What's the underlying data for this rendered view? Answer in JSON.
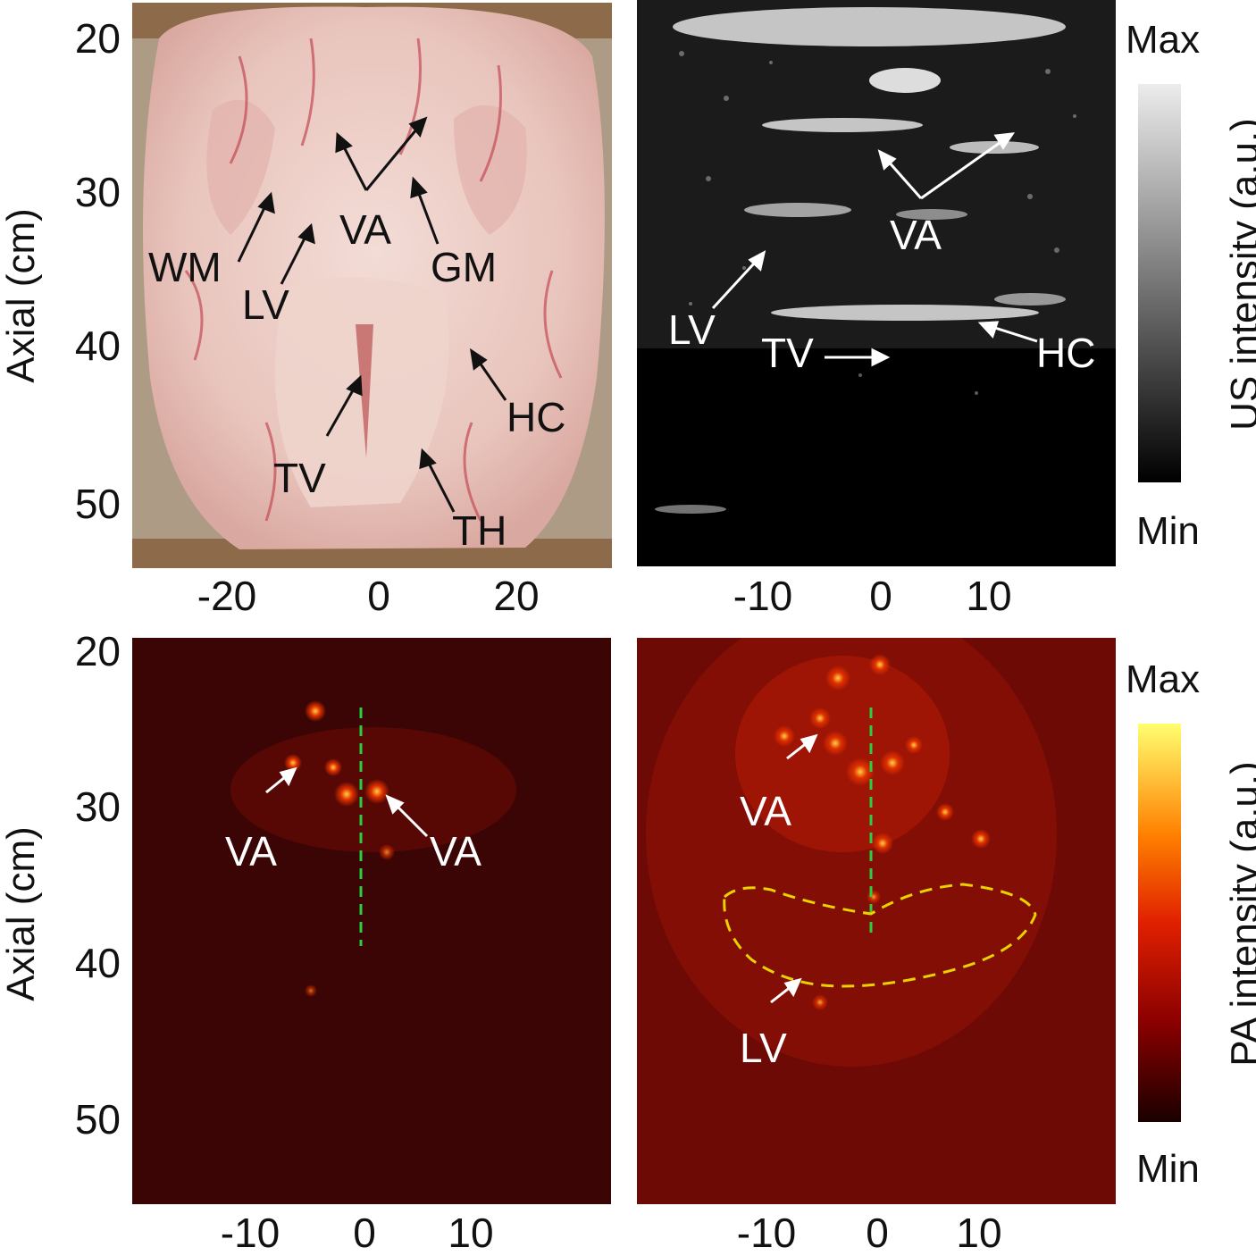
{
  "panels": {
    "photo": {
      "labels": {
        "wm": "WM",
        "lv": "LV",
        "va": "VA",
        "gm": "GM",
        "hc": "HC",
        "tv": "TV",
        "th": "TH"
      },
      "x_ticks": [
        "-20",
        "0",
        "20"
      ],
      "y_ticks": [
        "20",
        "30",
        "40",
        "50"
      ]
    },
    "ultrasound": {
      "labels": {
        "va": "VA",
        "lv": "LV",
        "tv": "TV",
        "hc": "HC"
      },
      "x_ticks": [
        "-10",
        "0",
        "10"
      ]
    },
    "pa_left": {
      "labels": {
        "va_left": "VA",
        "va_right": "VA"
      },
      "x_ticks": [
        "-10",
        "0",
        "10"
      ],
      "y_ticks": [
        "20",
        "30",
        "40",
        "50"
      ]
    },
    "pa_right": {
      "labels": {
        "va": "VA",
        "lv": "LV"
      },
      "x_ticks": [
        "-10",
        "0",
        "10"
      ]
    }
  },
  "axis_title_top": "Axial (cm)",
  "axis_title_bottom": "Axial (cm)",
  "colorbars": {
    "us": {
      "max": "Max",
      "min": "Min",
      "title": "US intensity (a.u.)",
      "colors": [
        "#000000",
        "#ececec"
      ]
    },
    "pa": {
      "max": "Max",
      "min": "Min",
      "title": "PA intensity (a.u.)",
      "colors": [
        "#1a0000",
        "#8a0000",
        "#e02000",
        "#ff8000",
        "#ffff70"
      ]
    }
  },
  "colors": {
    "pa_background": "#3b0505",
    "guide_line": "#2ecc40",
    "outline": "#e8d200"
  }
}
